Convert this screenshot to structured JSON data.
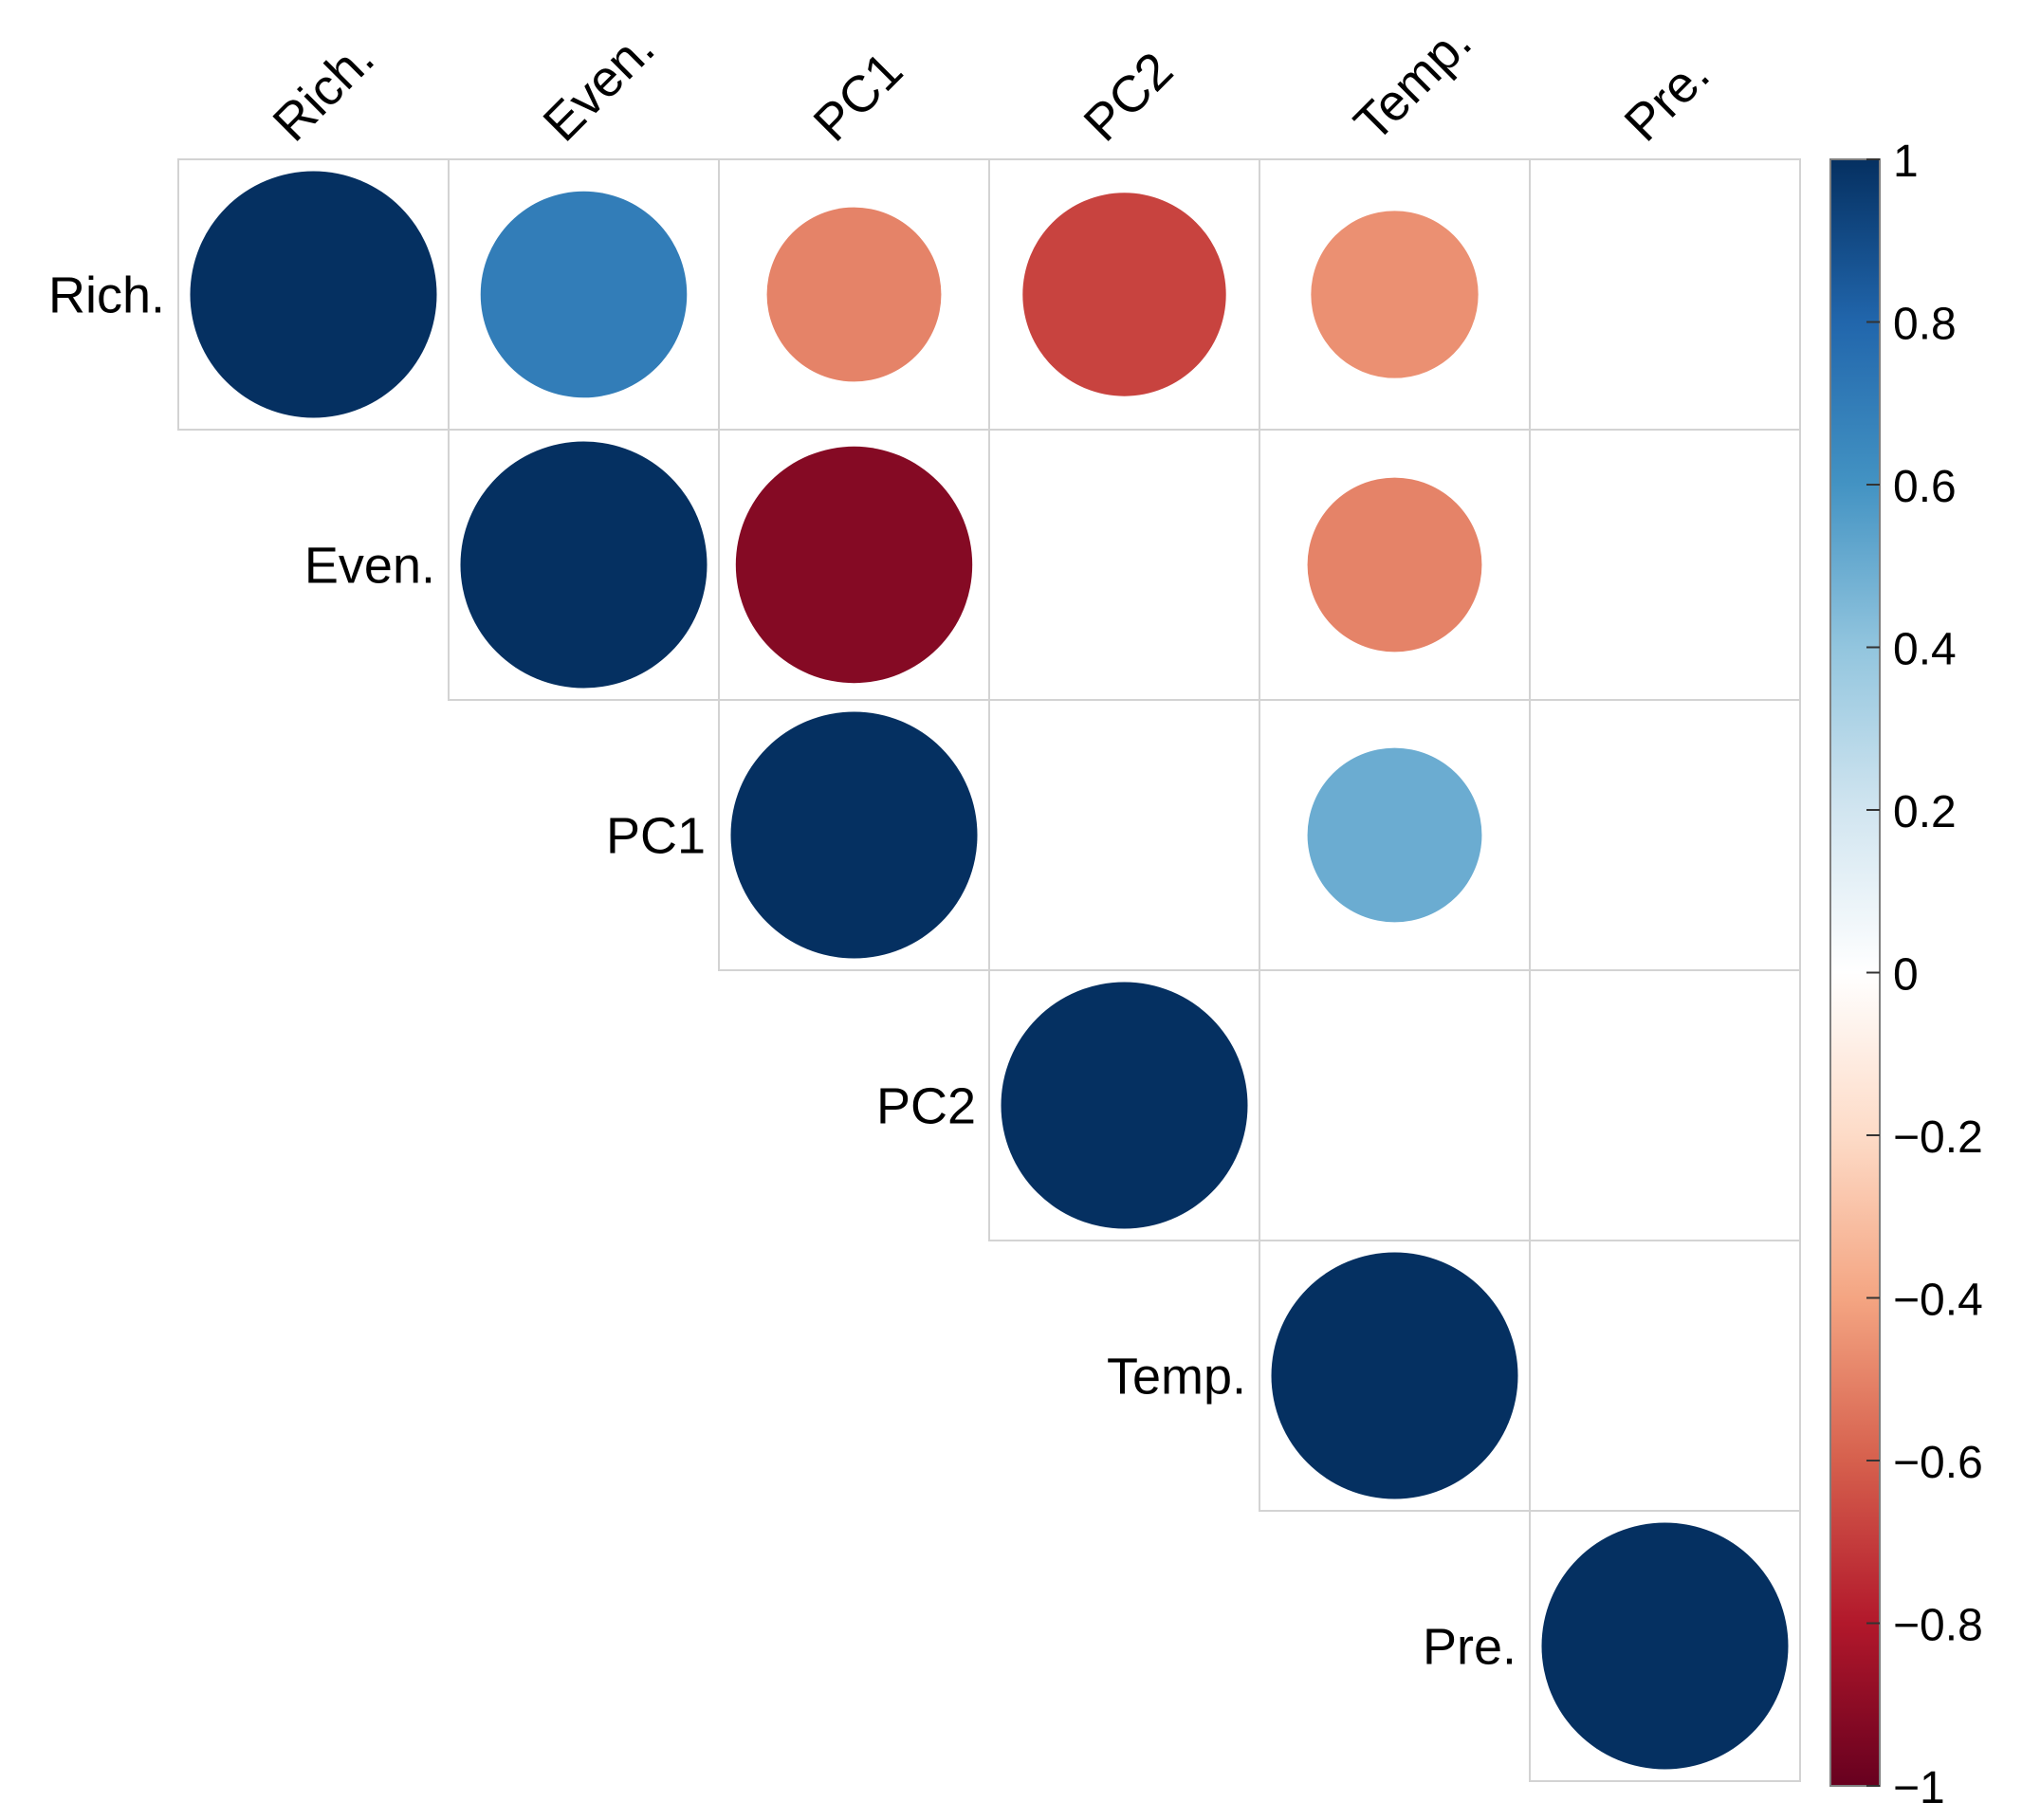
{
  "chart_data": {
    "type": "heatmap",
    "variant": "correlation-circle-upper-triangle",
    "variables": [
      "Rich.",
      "Even.",
      "PC1",
      "PC2",
      "Temp.",
      "Pre."
    ],
    "cells": [
      {
        "row": 0,
        "col": 0,
        "value": 1.0
      },
      {
        "row": 0,
        "col": 1,
        "value": 0.7
      },
      {
        "row": 0,
        "col": 2,
        "value": -0.5
      },
      {
        "row": 0,
        "col": 3,
        "value": -0.68
      },
      {
        "row": 0,
        "col": 4,
        "value": -0.46
      },
      {
        "row": 1,
        "col": 1,
        "value": 1.0
      },
      {
        "row": 1,
        "col": 2,
        "value": -0.92
      },
      {
        "row": 1,
        "col": 4,
        "value": -0.5
      },
      {
        "row": 2,
        "col": 2,
        "value": 1.0
      },
      {
        "row": 2,
        "col": 4,
        "value": 0.5
      },
      {
        "row": 3,
        "col": 3,
        "value": 1.0
      },
      {
        "row": 4,
        "col": 4,
        "value": 1.0
      },
      {
        "row": 5,
        "col": 5,
        "value": 1.0
      }
    ],
    "colorbar": {
      "range": [
        -1,
        1
      ],
      "ticks": [
        "1",
        "0.8",
        "0.6",
        "0.4",
        "0.2",
        "0",
        "−0.2",
        "−0.4",
        "−0.6",
        "−0.8",
        "−1"
      ],
      "tick_values": [
        1,
        0.8,
        0.6,
        0.4,
        0.2,
        0,
        -0.2,
        -0.4,
        -0.6,
        -0.8,
        -1
      ],
      "colors": [
        "#67001F",
        "#B2182B",
        "#D6604D",
        "#F4A582",
        "#FDDBC7",
        "#FFFFFF",
        "#D1E5F0",
        "#92C5DE",
        "#4393C3",
        "#2166AC",
        "#053061"
      ]
    },
    "grid_color": "#D3D3D3"
  }
}
